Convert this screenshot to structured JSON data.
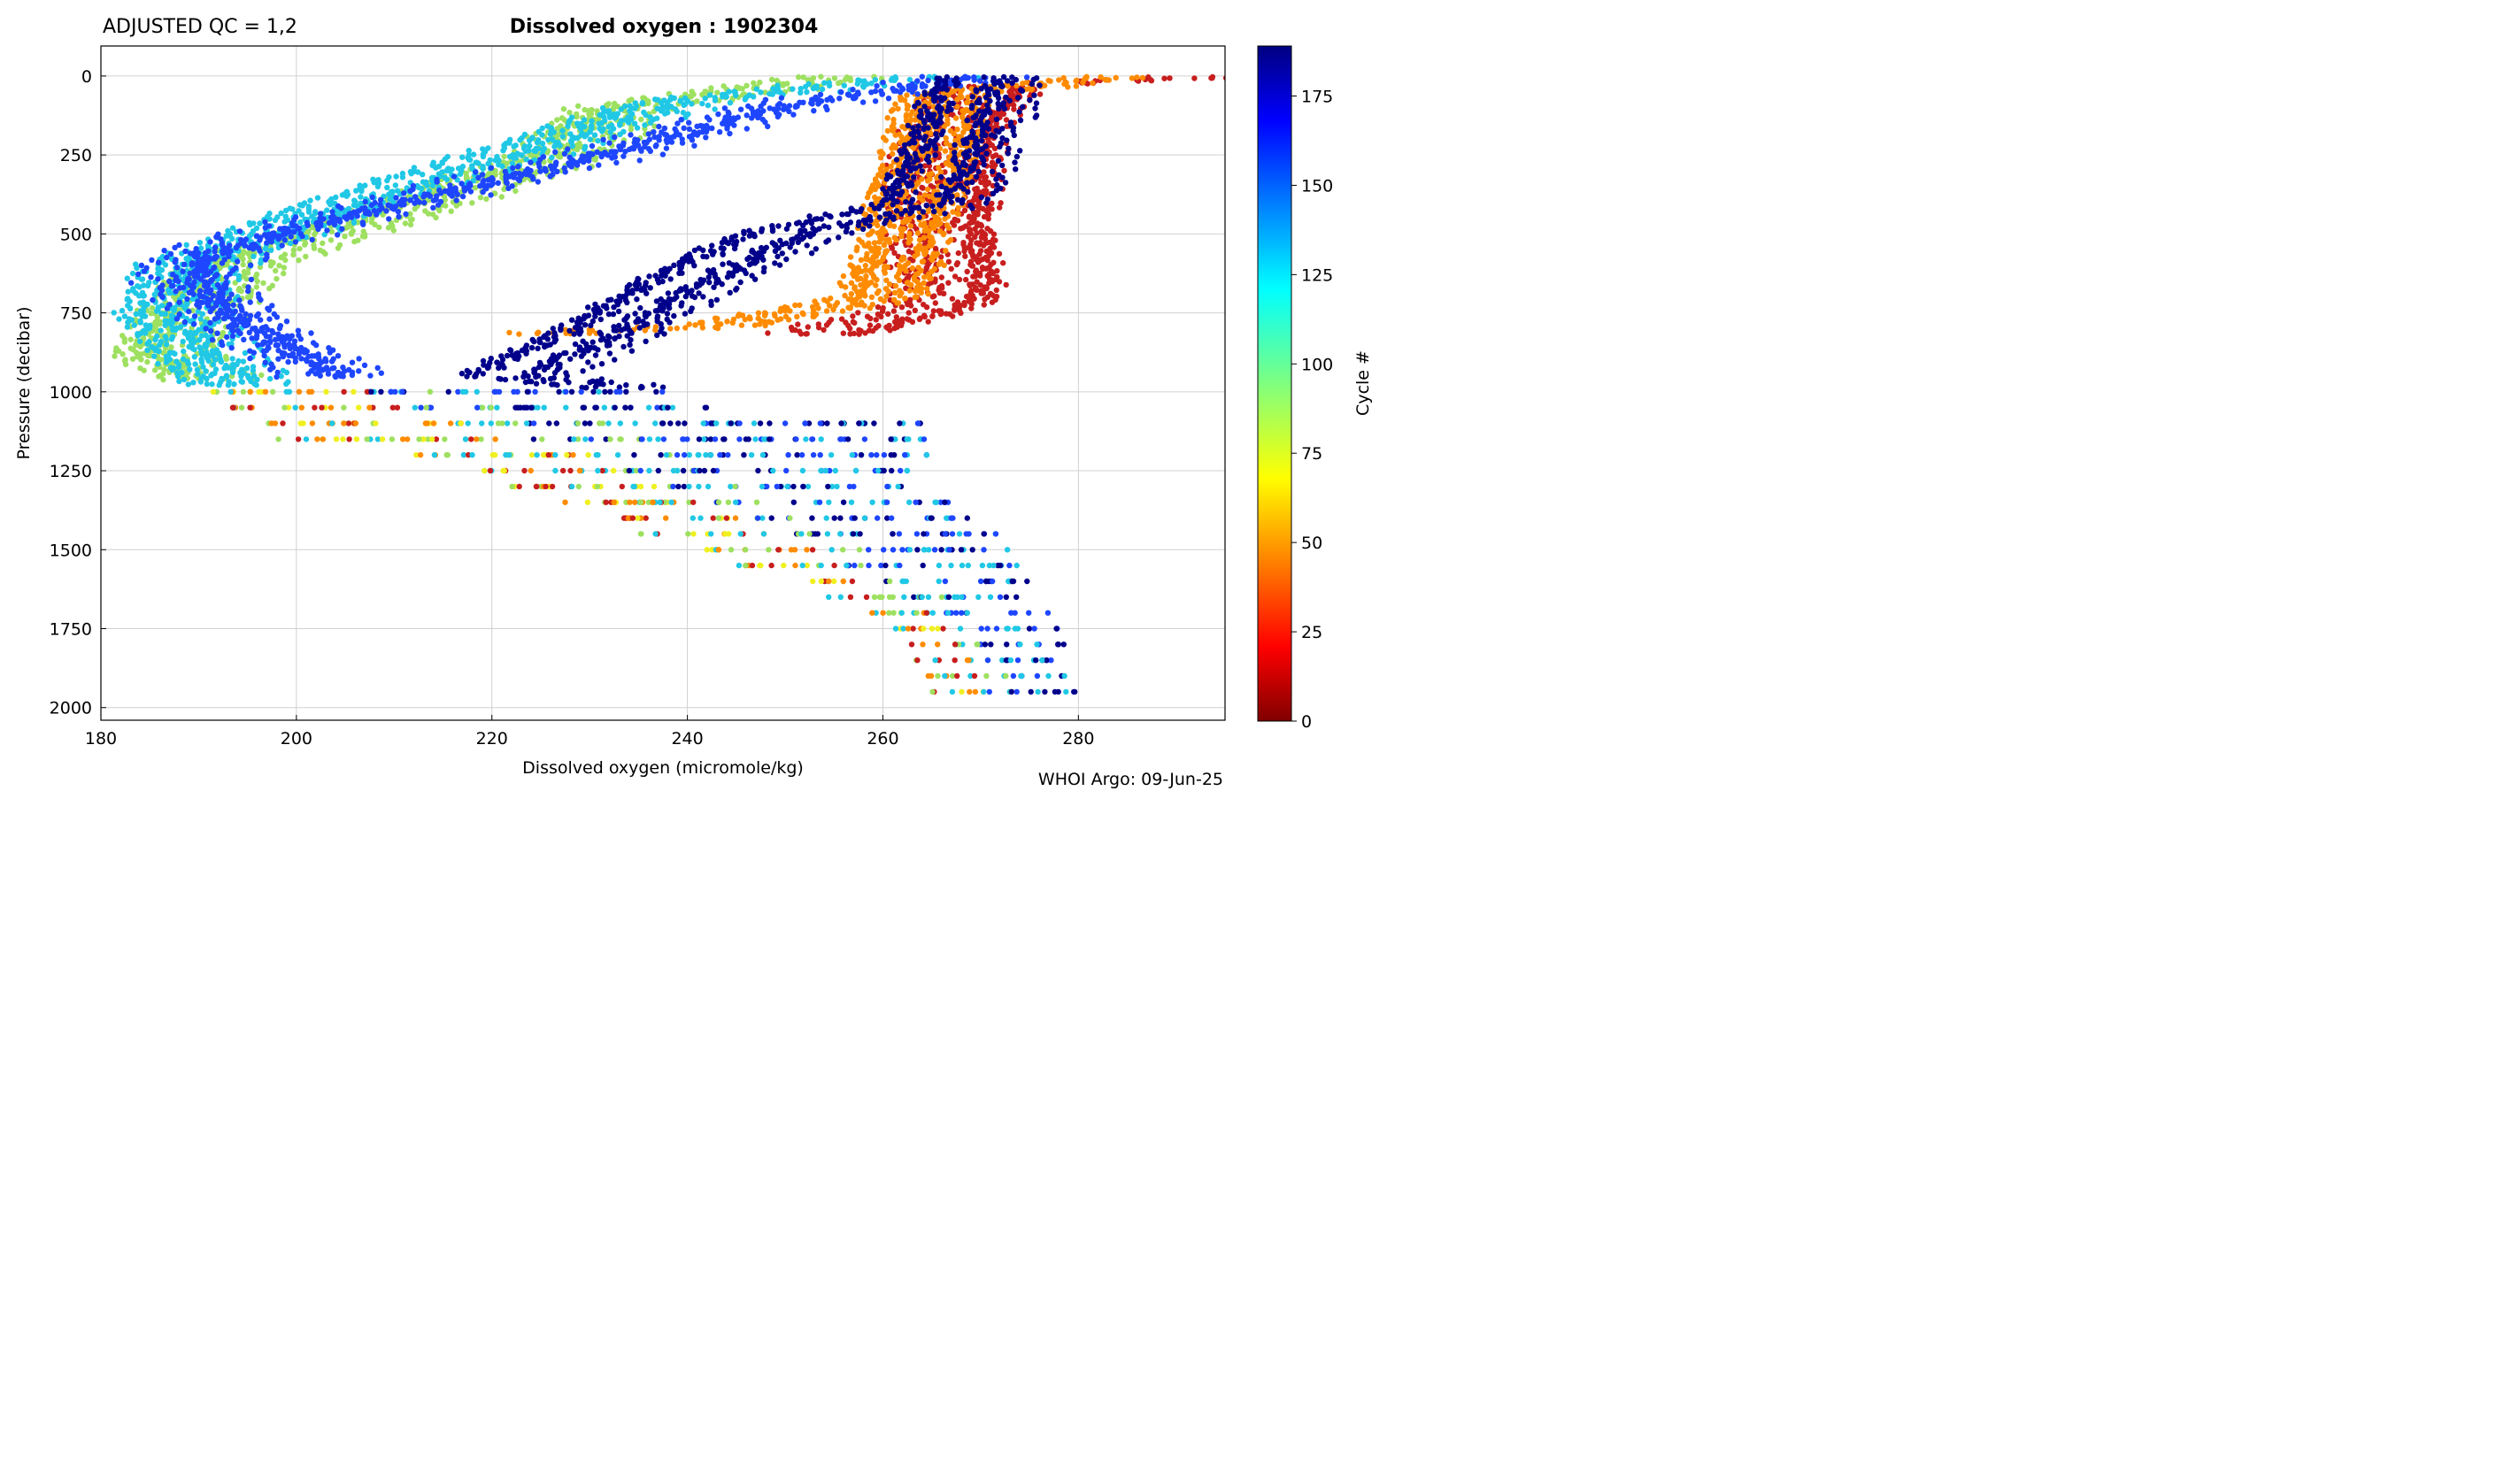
{
  "header": {
    "qc_label": "ADJUSTED QC = 1,2",
    "title": "Dissolved oxygen : 1902304"
  },
  "footer": {
    "credit": "WHOI Argo: 09-Jun-25"
  },
  "chart_data": {
    "type": "scatter",
    "title": "Dissolved oxygen : 1902304",
    "subtitle": "ADJUSTED QC = 1,2",
    "xlabel": "Dissolved oxygen  (micromole/kg)",
    "ylabel": "Pressure  (decibar)",
    "xlim": [
      180,
      295
    ],
    "ylim": [
      2040,
      -95
    ],
    "y_inverted": true,
    "x_ticks": [
      180,
      200,
      220,
      240,
      260,
      280
    ],
    "y_ticks": [
      0,
      250,
      500,
      750,
      1000,
      1250,
      1500,
      1750,
      2000
    ],
    "grid": true,
    "colorbar": {
      "label": "Cycle #",
      "colormap": "jet",
      "range": [
        0,
        189
      ],
      "ticks": [
        0,
        25,
        50,
        75,
        100,
        125,
        150,
        175
      ]
    },
    "series": [
      {
        "cycle_group": "early (cycles ~0-30)",
        "color": "#c81e1e",
        "profile": [
          [
            290,
            5
          ],
          [
            270,
            30
          ],
          [
            266,
            200
          ],
          [
            265,
            450
          ],
          [
            266,
            700
          ],
          [
            262,
            750
          ],
          [
            252,
            820
          ]
        ]
      },
      {
        "cycle_group": "early (cycles ~30-60)",
        "color": "#ff8c00",
        "profile": [
          [
            285,
            5
          ],
          [
            268,
            60
          ],
          [
            266,
            300
          ],
          [
            264,
            500
          ],
          [
            262,
            700
          ],
          [
            245,
            790
          ],
          [
            225,
            820
          ]
        ]
      },
      {
        "cycle_group": "mid (cycles ~70-100)",
        "color": "#9ee060",
        "profile": [
          [
            255,
            5
          ],
          [
            232,
            100
          ],
          [
            226,
            250
          ],
          [
            212,
            400
          ],
          [
            192,
            600
          ],
          [
            188,
            750
          ],
          [
            185,
            880
          ],
          [
            190,
            960
          ]
        ]
      },
      {
        "cycle_group": "mid (cycles ~100-130)",
        "color": "#20c8e6",
        "profile": [
          [
            265,
            5
          ],
          [
            240,
            80
          ],
          [
            228,
            200
          ],
          [
            205,
            420
          ],
          [
            190,
            600
          ],
          [
            188,
            760
          ],
          [
            192,
            900
          ],
          [
            195,
            980
          ]
        ]
      },
      {
        "cycle_group": "late (cycles ~130-165)",
        "color": "#1e46ff",
        "profile": [
          [
            270,
            5
          ],
          [
            250,
            100
          ],
          [
            232,
            250
          ],
          [
            205,
            450
          ],
          [
            192,
            560
          ],
          [
            190,
            650
          ],
          [
            196,
            800
          ],
          [
            205,
            950
          ]
        ]
      },
      {
        "cycle_group": "late (cycles ~165-189)",
        "color": "#00008b",
        "profile": [
          [
            270,
            5
          ],
          [
            268,
            200
          ],
          [
            265,
            400
          ],
          [
            250,
            500
          ],
          [
            240,
            650
          ],
          [
            232,
            800
          ],
          [
            222,
            950
          ],
          [
            234,
            990
          ]
        ]
      }
    ],
    "deep_samples": [
      {
        "pressure": 1000,
        "x_range": [
          191,
          238
        ]
      },
      {
        "pressure": 1050,
        "x_range": [
          193,
          244
        ]
      },
      {
        "pressure": 1100,
        "x_range": [
          195,
          265
        ]
      },
      {
        "pressure": 1150,
        "x_range": [
          198,
          267
        ]
      },
      {
        "pressure": 1200,
        "x_range": [
          211,
          265
        ]
      },
      {
        "pressure": 1250,
        "x_range": [
          218,
          263
        ]
      },
      {
        "pressure": 1300,
        "x_range": [
          222,
          265
        ]
      },
      {
        "pressure": 1350,
        "x_range": [
          227,
          267
        ]
      },
      {
        "pressure": 1400,
        "x_range": [
          233,
          270
        ]
      },
      {
        "pressure": 1450,
        "x_range": [
          235,
          272
        ]
      },
      {
        "pressure": 1500,
        "x_range": [
          242,
          273
        ]
      },
      {
        "pressure": 1550,
        "x_range": [
          245,
          274
        ]
      },
      {
        "pressure": 1600,
        "x_range": [
          252,
          275
        ]
      },
      {
        "pressure": 1650,
        "x_range": [
          254,
          276
        ]
      },
      {
        "pressure": 1700,
        "x_range": [
          258,
          277
        ]
      },
      {
        "pressure": 1750,
        "x_range": [
          261,
          278
        ]
      },
      {
        "pressure": 1800,
        "x_range": [
          262,
          279
        ]
      },
      {
        "pressure": 1850,
        "x_range": [
          263,
          280
        ]
      },
      {
        "pressure": 1900,
        "x_range": [
          264,
          280
        ]
      },
      {
        "pressure": 1950,
        "x_range": [
          265,
          281
        ]
      }
    ]
  }
}
